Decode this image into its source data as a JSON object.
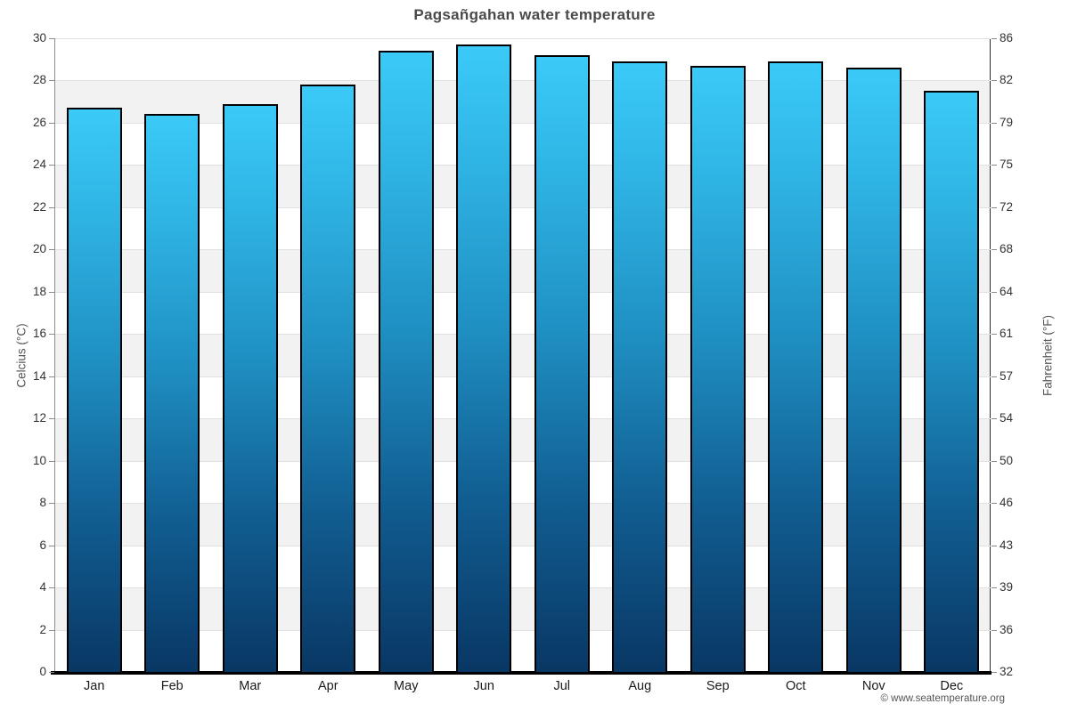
{
  "title": "Pagsañgahan water temperature",
  "footer": "© www.seatemperature.org",
  "chart_data": {
    "type": "bar",
    "title": "Pagsañgahan water temperature",
    "categories": [
      "Jan",
      "Feb",
      "Mar",
      "Apr",
      "May",
      "Jun",
      "Jul",
      "Aug",
      "Sep",
      "Oct",
      "Nov",
      "Dec"
    ],
    "values": [
      26.7,
      26.4,
      26.9,
      27.8,
      29.4,
      29.7,
      29.2,
      28.9,
      28.7,
      28.9,
      28.6,
      27.5
    ],
    "xlabel": "",
    "ylabel_left": "Celcius (°C)",
    "ylabel_right": "Fahrenheit (°F)",
    "ylim": [
      0,
      30
    ],
    "yticks_left": [
      30,
      28,
      26,
      24,
      22,
      20,
      18,
      16,
      14,
      12,
      10,
      8,
      6,
      4,
      2,
      0
    ],
    "yticks_right": [
      86,
      82,
      79,
      75,
      72,
      68,
      64,
      61,
      57,
      54,
      50,
      46,
      43,
      39,
      36,
      32
    ],
    "grid": "horizontal alternating bands every 2°C, light gridlines",
    "legend": "none",
    "bar_border_color": "#000000",
    "bar_gradient_top": "#3bcaf8",
    "bar_gradient_bottom": "#093764",
    "band_color": "#f2f2f2",
    "gridline_color": "#e0e0e0",
    "title_color": "#4a4a4a"
  }
}
